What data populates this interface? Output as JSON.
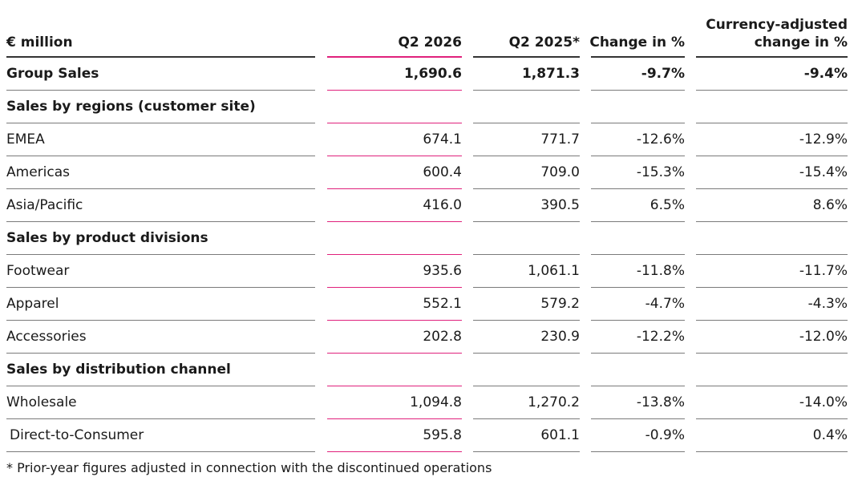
{
  "header": {
    "col0": "€ million",
    "col1": "Q2 2026",
    "col2": "Q2 2025*",
    "col3": "Change in %",
    "col4_line1": "Currency-adjusted",
    "col4_line2": "change in %"
  },
  "rows": [
    {
      "label": "Group Sales",
      "q2_2026": "1,690.6",
      "q2_2025": "1,871.3",
      "change": "-9.7%",
      "fx_change": "-9.4%"
    },
    {
      "label": "Sales by regions (customer site)",
      "q2_2026": "",
      "q2_2025": "",
      "change": "",
      "fx_change": ""
    },
    {
      "label": "EMEA",
      "q2_2026": "674.1",
      "q2_2025": "771.7",
      "change": "-12.6%",
      "fx_change": "-12.9%"
    },
    {
      "label": "Americas",
      "q2_2026": "600.4",
      "q2_2025": "709.0",
      "change": "-15.3%",
      "fx_change": "-15.4%"
    },
    {
      "label": "Asia/Pacific",
      "q2_2026": "416.0",
      "q2_2025": "390.5",
      "change": "6.5%",
      "fx_change": "8.6%"
    },
    {
      "label": "Sales by product divisions",
      "q2_2026": "",
      "q2_2025": "",
      "change": "",
      "fx_change": ""
    },
    {
      "label": "Footwear",
      "q2_2026": "935.6",
      "q2_2025": "1,061.1",
      "change": "-11.8%",
      "fx_change": "-11.7%"
    },
    {
      "label": "Apparel",
      "q2_2026": "552.1",
      "q2_2025": "579.2",
      "change": "-4.7%",
      "fx_change": "-4.3%"
    },
    {
      "label": "Accessories",
      "q2_2026": "202.8",
      "q2_2025": "230.9",
      "change": "-12.2%",
      "fx_change": "-12.0%"
    },
    {
      "label": "Sales by distribution channel",
      "q2_2026": "",
      "q2_2025": "",
      "change": "",
      "fx_change": ""
    },
    {
      "label": "Wholesale",
      "q2_2026": "1,094.8",
      "q2_2025": "1,270.2",
      "change": "-13.8%",
      "fx_change": "-14.0%"
    },
    {
      "label": "Direct-to-Consumer",
      "q2_2026": "595.8",
      "q2_2025": "601.1",
      "change": "-0.9%",
      "fx_change": "0.4%"
    }
  ],
  "footnote": "* Prior-year figures adjusted in connection with the discontinued operations",
  "colors": {
    "accent_rule": "#e0217c",
    "rule": "#7a7a7a",
    "text": "#1a1a1a"
  }
}
